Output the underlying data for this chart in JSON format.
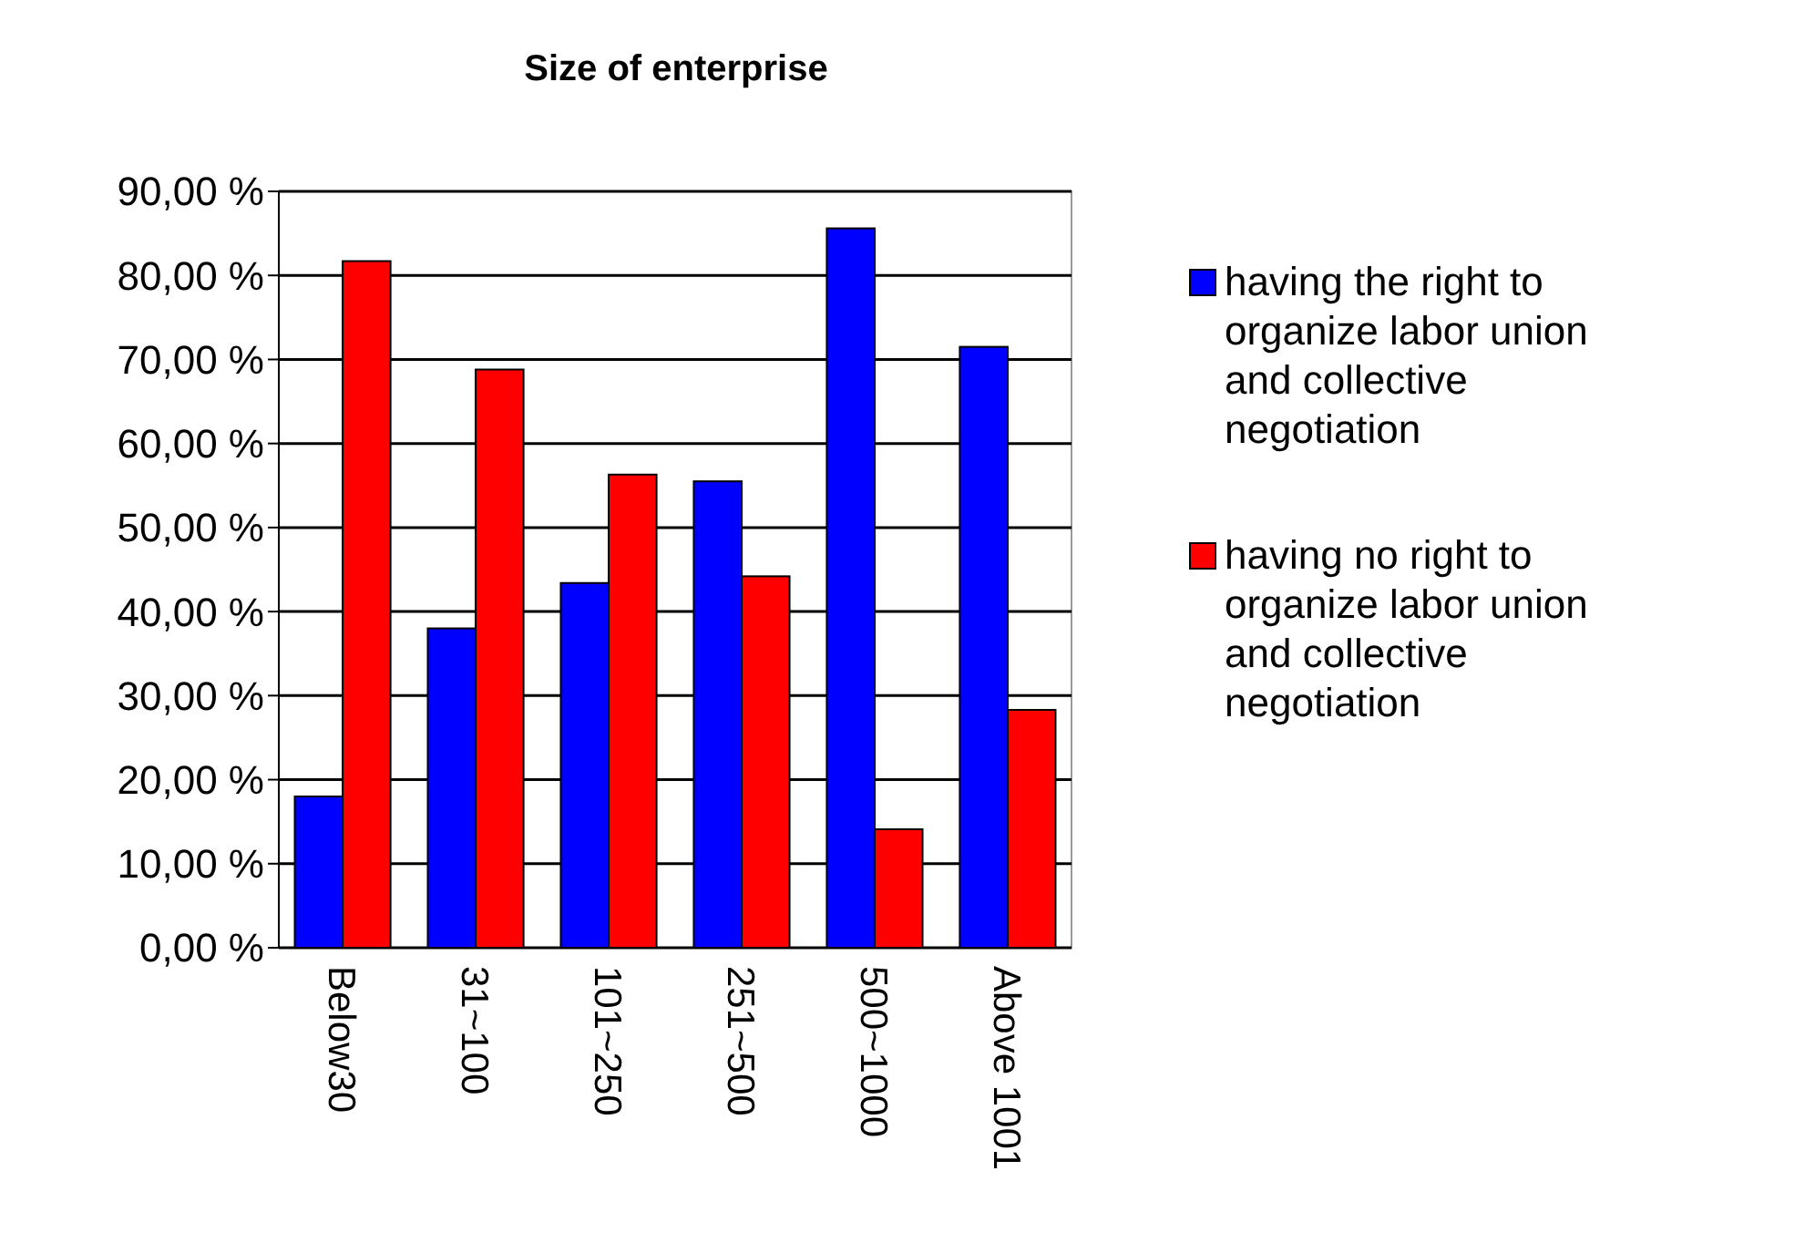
{
  "chart_data": {
    "type": "bar",
    "title": "Size of enterprise",
    "categories": [
      "Below30",
      "31~100",
      "101~250",
      "251~500",
      "500~1000",
      "Above 1001"
    ],
    "series": [
      {
        "name": "having the right to organize labor union and collective negotiation",
        "color": "#0000ff",
        "values": [
          18,
          38,
          43.4,
          55.5,
          85.6,
          71.5
        ]
      },
      {
        "name": "having no right to organize labor union and collective negotiation",
        "color": "#ff0000",
        "values": [
          81.7,
          68.8,
          56.3,
          44.2,
          14.1,
          28.3
        ]
      }
    ],
    "ylim": [
      0,
      90
    ],
    "yticks": [
      {
        "value": 0,
        "label": "0,00 %"
      },
      {
        "value": 10,
        "label": "10,00 %"
      },
      {
        "value": 20,
        "label": "20,00 %"
      },
      {
        "value": 30,
        "label": "30,00 %"
      },
      {
        "value": 40,
        "label": "40,00 %"
      },
      {
        "value": 50,
        "label": "50,00 %"
      },
      {
        "value": 60,
        "label": "60,00 %"
      },
      {
        "value": 70,
        "label": "70,00 %"
      },
      {
        "value": 80,
        "label": "80,00 %"
      },
      {
        "value": 90,
        "label": "90,00 %"
      }
    ],
    "grid": "y",
    "legend": "right"
  }
}
